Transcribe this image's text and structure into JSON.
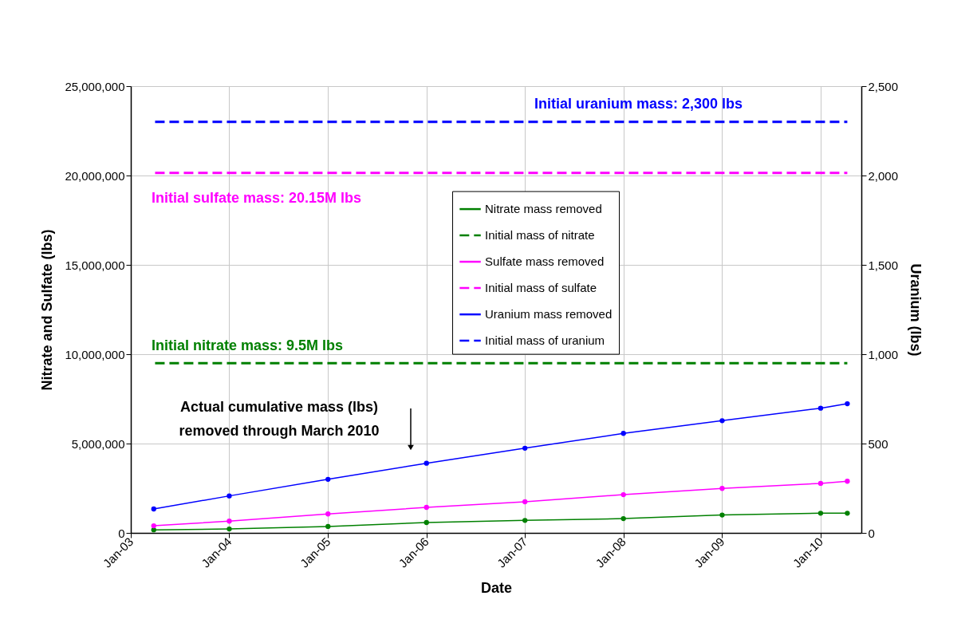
{
  "chart_data": {
    "type": "line",
    "xlabel": "Date",
    "ylabel": "Nitrate and Sulfate (lbs)",
    "y2label": "Uranium (lbs)",
    "xlim": [
      "2003-01-01",
      "2010-06-01"
    ],
    "xticks": [
      {
        "value": "2003-01-01",
        "label": "Jan-03"
      },
      {
        "value": "2004-01-01",
        "label": "Jan-04"
      },
      {
        "value": "2005-01-01",
        "label": "Jan-05"
      },
      {
        "value": "2006-01-01",
        "label": "Jan-06"
      },
      {
        "value": "2007-01-01",
        "label": "Jan-07"
      },
      {
        "value": "2008-01-01",
        "label": "Jan-08"
      },
      {
        "value": "2009-01-01",
        "label": "Jan-09"
      },
      {
        "value": "2010-01-01",
        "label": "Jan-10"
      }
    ],
    "ylim": [
      0,
      25000000
    ],
    "yticks": [
      {
        "value": 0,
        "label": "0"
      },
      {
        "value": 5000000,
        "label": "5,000,000"
      },
      {
        "value": 10000000,
        "label": "10,000,000"
      },
      {
        "value": 15000000,
        "label": "15,000,000"
      },
      {
        "value": 20000000,
        "label": "20,000,000"
      },
      {
        "value": 25000000,
        "label": "25,000,000"
      }
    ],
    "y2lim": [
      0,
      2500
    ],
    "y2ticks": [
      {
        "value": 0,
        "label": "0"
      },
      {
        "value": 500,
        "label": "500"
      },
      {
        "value": 1000,
        "label": "1,000"
      },
      {
        "value": 1500,
        "label": "1,500"
      },
      {
        "value": 2000,
        "label": "2,000"
      },
      {
        "value": 2500,
        "label": "2,500"
      }
    ],
    "grid": true,
    "legend": "center",
    "series": [
      {
        "name": "Nitrate mass removed",
        "color": "#008000",
        "marker": "circle",
        "line_style": "solid",
        "x": [
          "2003-03-27",
          "2004-01-01",
          "2005-01-01",
          "2006-01-01",
          "2007-01-01",
          "2008-01-01",
          "2009-01-01",
          "2010-01-01",
          "2010-04-10"
        ],
        "values": [
          170000,
          220000,
          360000,
          580000,
          700000,
          800000,
          1000000,
          1100000,
          1100000
        ]
      },
      {
        "name": "Initial mass of nitrate",
        "color": "#008000",
        "marker": "none",
        "line_style": "dashed",
        "x": [
          "2003-04-01",
          "2010-04-10"
        ],
        "values": [
          9500000,
          9500000
        ]
      },
      {
        "name": "Sulfate mass removed",
        "color": "#ff00ff",
        "marker": "circle",
        "line_style": "solid",
        "x": [
          "2003-03-27",
          "2004-01-01",
          "2005-01-01",
          "2006-01-01",
          "2007-01-01",
          "2008-01-01",
          "2009-01-01",
          "2010-01-01",
          "2010-04-10"
        ],
        "values": [
          400000,
          660000,
          1060000,
          1430000,
          1740000,
          2140000,
          2490000,
          2770000,
          2890000
        ]
      },
      {
        "name": "Initial mass of sulfate",
        "color": "#ff00ff",
        "marker": "none",
        "line_style": "dashed",
        "x": [
          "2003-04-01",
          "2010-04-10"
        ],
        "values": [
          20150000,
          20150000
        ]
      },
      {
        "name": "Uranium mass removed",
        "color": "#0000ff",
        "marker": "circle",
        "line_style": "solid",
        "axis": "y2",
        "x": [
          "2003-03-27",
          "2004-01-01",
          "2005-01-01",
          "2006-01-01",
          "2007-01-01",
          "2008-01-01",
          "2009-01-01",
          "2010-01-01",
          "2010-04-10"
        ],
        "values": [
          134,
          207,
          300,
          390,
          474,
          557,
          628,
          698,
          723
        ]
      },
      {
        "name": "Initial mass of uranium",
        "color": "#0000ff",
        "marker": "none",
        "line_style": "dashed",
        "axis": "y2",
        "x": [
          "2003-04-01",
          "2010-04-10"
        ],
        "values": [
          2300,
          2300
        ]
      }
    ],
    "annotations": [
      "Initial uranium mass: 2,300 lbs",
      "Initial sulfate mass: 20.15M lbs",
      "Initial nitrate mass: 9.5M lbs",
      "Actual cumulative mass (lbs)\nremoved through March 2010"
    ]
  }
}
